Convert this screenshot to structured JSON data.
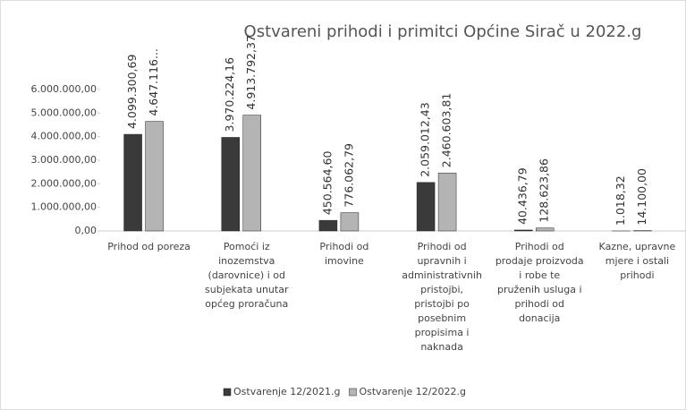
{
  "chart_data": {
    "type": "bar",
    "title": "Ostvareni prihodi i primitci Općine Sirač u 2022.g",
    "categories": [
      "Prihod od poreza",
      "Pomoći iz inozemstva (darovnice) i od subjekata unutar općeg proračuna",
      "Prihodi od imovine",
      "Prihodi od upravnih i administrativnih pristojbi, pristojbi po posebnim propisima i naknada",
      "Prihodi od prodaje proizvoda i robe te pruženih usluga i prihodi od donacija",
      "Kazne, upravne mjere i ostali prihodi"
    ],
    "series": [
      {
        "name": "Ostvarenje 12/2021.g",
        "color": "#3a3a3a",
        "values": [
          4099300.69,
          3970224.16,
          450564.6,
          2059012.43,
          40436.79,
          1018.32
        ],
        "value_labels": [
          "4.099.300,69",
          "3.970.224,16",
          "450.564,60",
          "2.059.012,43",
          "40.436,79",
          "1.018,32"
        ]
      },
      {
        "name": "Ostvarenje 12/2022.g",
        "color": "#b4b4b4",
        "values": [
          4647116,
          4913792.37,
          776062.79,
          2460603.81,
          128623.86,
          14100.0
        ],
        "value_labels": [
          "4.647.116...",
          "4.913.792,37",
          "776.062,79",
          "2.460.603,81",
          "128.623,86",
          "14.100,00"
        ]
      }
    ],
    "ylim": [
      0,
      6000000
    ],
    "yticks": [
      {
        "value": 0,
        "label": "0,00"
      },
      {
        "value": 1000000,
        "label": "1.000.000,00"
      },
      {
        "value": 2000000,
        "label": "2.000.000,00"
      },
      {
        "value": 3000000,
        "label": "3.000.000,00"
      },
      {
        "value": 4000000,
        "label": "4.000.000,00"
      },
      {
        "value": 5000000,
        "label": "5.000.000,00"
      },
      {
        "value": 6000000,
        "label": "6.000.000,00"
      }
    ],
    "grid": false,
    "legend": "bottom"
  }
}
